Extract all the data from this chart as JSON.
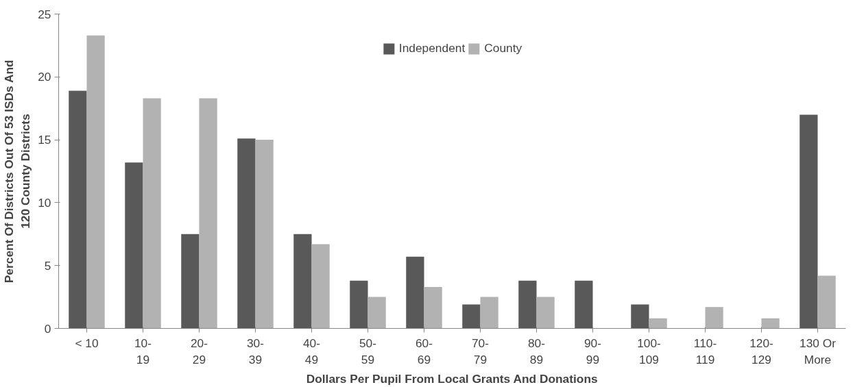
{
  "chart_data": {
    "type": "bar",
    "categories": [
      "< 10",
      "10-\n19",
      "20-\n29",
      "30-\n39",
      "40-\n49",
      "50-\n59",
      "60-\n69",
      "70-\n79",
      "80-\n89",
      "90-\n99",
      "100-\n109",
      "110-\n119",
      "120-\n129",
      "130 Or\nMore"
    ],
    "series": [
      {
        "name": "Independent",
        "color": "#595959",
        "values": [
          18.9,
          13.2,
          7.5,
          15.1,
          7.5,
          3.8,
          5.7,
          1.9,
          3.8,
          3.8,
          1.9,
          0,
          0,
          17.0
        ]
      },
      {
        "name": "County",
        "color": "#b2b2b2",
        "values": [
          23.3,
          18.3,
          18.3,
          15.0,
          6.7,
          2.5,
          3.3,
          2.5,
          2.5,
          0,
          0.8,
          1.7,
          0.8,
          4.2
        ]
      }
    ],
    "xlabel": "Dollars Per Pupil From Local Grants And Donations",
    "ylabel": "Percent Of Districts Out Of 53 ISDs And\n120 County Districts",
    "ylim": [
      0,
      25
    ],
    "yticks": [
      0,
      5,
      10,
      15,
      20,
      25
    ],
    "legend": "top",
    "grid": false
  }
}
